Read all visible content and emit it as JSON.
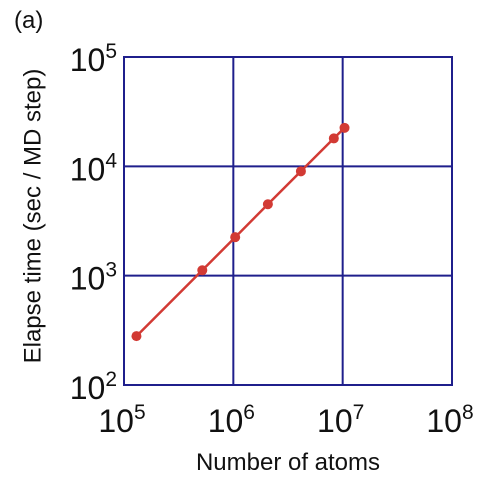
{
  "panel_label": "(a)",
  "chart_data": {
    "type": "line",
    "title": "",
    "xlabel": "Number of atoms",
    "ylabel": "Elapse time (sec / MD step)",
    "xscale": "log",
    "yscale": "log",
    "xlim": [
      100000,
      100000000
    ],
    "ylim": [
      100,
      100000
    ],
    "grid": true,
    "x_ticks": [
      {
        "base": "10",
        "exp": "5"
      },
      {
        "base": "10",
        "exp": "6"
      },
      {
        "base": "10",
        "exp": "7"
      },
      {
        "base": "10",
        "exp": "8"
      }
    ],
    "y_ticks": [
      {
        "base": "10",
        "exp": "2"
      },
      {
        "base": "10",
        "exp": "3"
      },
      {
        "base": "10",
        "exp": "4"
      },
      {
        "base": "10",
        "exp": "5"
      }
    ],
    "series": [
      {
        "x": [
          130000,
          520000,
          1040000,
          2070000,
          4150000,
          8300000,
          10400000
        ],
        "y": [
          280,
          1120,
          2250,
          4500,
          9000,
          18000,
          22500
        ]
      }
    ],
    "colors": {
      "axes": "#1f1f8c",
      "line": "#d23a34",
      "marker": "#d23a34"
    }
  }
}
